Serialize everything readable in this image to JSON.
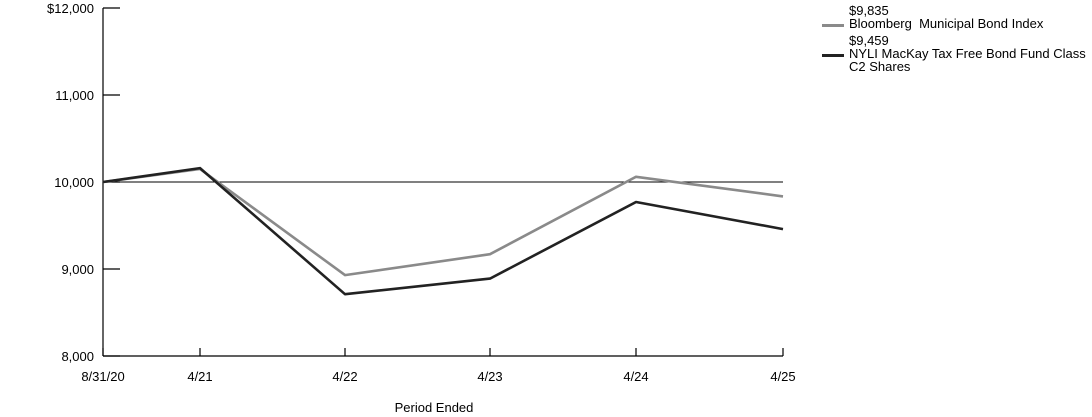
{
  "chart_data": {
    "type": "line",
    "title": "",
    "xlabel": "Period Ended",
    "ylabel": "",
    "categories": [
      "8/31/20",
      "4/21",
      "4/22",
      "4/23",
      "4/24",
      "4/25"
    ],
    "x": [
      "2020-08-31",
      "2021-04-30",
      "2022-04-30",
      "2023-04-30",
      "2024-04-30",
      "2025-04-30"
    ],
    "ylim": [
      8000,
      12000
    ],
    "yticks": [
      8000,
      9000,
      10000,
      11000,
      12000
    ],
    "ytick_labels": [
      "8,000",
      "9,000",
      "10,000",
      "11,000",
      "$12,000"
    ],
    "reference_line": 10000,
    "grid": false,
    "legend_position": "top-right",
    "series": [
      {
        "name": "Bloomberg  Municipal Bond Index",
        "end_label": "$9,835",
        "color": "#8a8a8a",
        "values": [
          10000,
          10150,
          8930,
          9170,
          10060,
          9835
        ]
      },
      {
        "name": "NYLI MacKay Tax Free Bond Fund Class C2 Shares",
        "end_label": "$9,459",
        "color": "#222222",
        "values": [
          10000,
          10160,
          8710,
          8890,
          9770,
          9459
        ]
      }
    ]
  }
}
